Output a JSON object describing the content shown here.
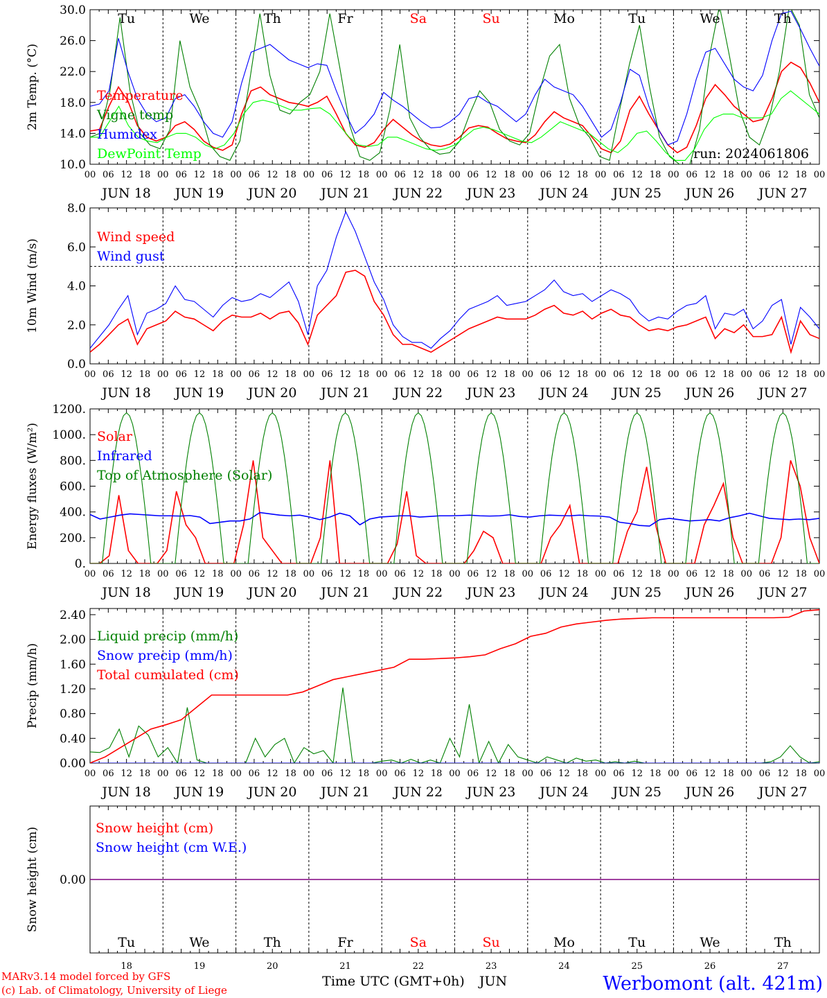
{
  "colors": {
    "red": "#ff0000",
    "green": "#008000",
    "blue": "#0000ff",
    "light_green": "#00ff00",
    "purple": "#800080",
    "axis": "#000000",
    "weekend": "#ff0000"
  },
  "days": [
    "Tu",
    "We",
    "Th",
    "Fr",
    "Sa",
    "Su",
    "Mo",
    "Tu",
    "We",
    "Th"
  ],
  "weekend_days": [
    4,
    5
  ],
  "dates": [
    "JUN 18",
    "JUN 19",
    "JUN 20",
    "JUN 21",
    "JUN 22",
    "JUN 23",
    "JUN 24",
    "JUN 25",
    "JUN 26",
    "JUN 27"
  ],
  "day_numbers": [
    "18",
    "19",
    "20",
    "21",
    "22",
    "23",
    "24",
    "25",
    "26",
    "27"
  ],
  "hour_labels": [
    "00",
    "06",
    "12",
    "18"
  ],
  "hour_label_end": "00",
  "footer": {
    "xlabel": "Time UTC (GMT+0h)",
    "month": "JUN",
    "credit1": "MARv3.14 model forced by GFS",
    "credit2": "(c) Lab. of Climatology, University of Liege",
    "station": "Werbomont (alt. 421m)"
  },
  "chart_data": [
    {
      "id": "temp",
      "type": "line",
      "ylabel": "2m Temp. (°C)",
      "ylim": [
        10,
        30
      ],
      "yticks": [
        "10.0",
        "14.0",
        "18.0",
        "22.0",
        "26.0",
        "30.0"
      ],
      "ytick_values": [
        10,
        14,
        18,
        22,
        26,
        30
      ],
      "annotation": "run: 2024061806",
      "x_hours_start": 0,
      "x_hours_step": 3,
      "series": [
        {
          "name": "Temperature",
          "color": "red",
          "values": [
            14.3,
            14.5,
            17.5,
            20.0,
            18.2,
            15.0,
            13.5,
            13.0,
            13.5,
            15.0,
            15.5,
            14.5,
            13.0,
            12.2,
            11.8,
            12.5,
            16.5,
            19.5,
            20.0,
            19.0,
            18.5,
            18.0,
            17.8,
            17.5,
            18.0,
            18.8,
            16.5,
            14.0,
            12.5,
            12.2,
            12.8,
            14.5,
            15.8,
            14.8,
            13.8,
            13.0,
            12.5,
            12.3,
            12.6,
            13.5,
            14.7,
            15.0,
            14.8,
            14.0,
            13.3,
            13.0,
            12.8,
            13.8,
            15.5,
            16.8,
            16.0,
            15.5,
            15.0,
            13.5,
            12.0,
            11.5,
            13.0,
            17.0,
            18.8,
            16.5,
            14.5,
            12.5,
            11.5,
            12.2,
            15.0,
            18.5,
            20.3,
            19.0,
            17.5,
            16.5,
            15.5,
            15.8,
            18.5,
            22.0,
            23.2,
            22.5,
            20.5,
            18.0
          ]
        },
        {
          "name": "Vigne temp",
          "color": "green",
          "values": [
            13.5,
            14.0,
            19.5,
            29.0,
            19.5,
            14.0,
            12.5,
            12.0,
            14.5,
            26.0,
            20.0,
            17.0,
            12.5,
            11.0,
            10.5,
            13.0,
            21.0,
            29.5,
            21.5,
            17.0,
            16.5,
            18.0,
            19.0,
            22.0,
            29.5,
            22.5,
            15.0,
            11.0,
            10.5,
            11.5,
            17.0,
            25.5,
            16.0,
            13.5,
            12.0,
            11.3,
            11.5,
            13.0,
            16.5,
            19.5,
            18.0,
            14.5,
            13.0,
            12.5,
            14.0,
            19.5,
            24.0,
            25.5,
            18.5,
            15.0,
            13.5,
            11.0,
            10.5,
            17.0,
            23.0,
            28.0,
            20.0,
            13.5,
            11.0,
            10.0,
            9.8,
            14.5,
            24.0,
            30.5,
            24.0,
            17.0,
            13.5,
            12.5,
            16.0,
            22.0,
            30.5,
            28.0,
            19.0,
            16.0
          ]
        },
        {
          "name": "Humidex",
          "color": "blue",
          "values": [
            17.5,
            17.8,
            19.5,
            26.3,
            22.0,
            18.5,
            16.5,
            15.5,
            16.0,
            18.5,
            19.0,
            17.5,
            15.5,
            14.0,
            13.5,
            15.5,
            20.5,
            24.5,
            25.0,
            25.5,
            24.5,
            23.5,
            23.0,
            22.5,
            23.0,
            22.8,
            19.5,
            16.5,
            14.0,
            15.0,
            16.5,
            19.3,
            18.3,
            17.5,
            16.5,
            15.5,
            14.7,
            14.8,
            15.5,
            16.5,
            18.5,
            18.8,
            18.0,
            17.5,
            16.5,
            15.5,
            16.5,
            19.0,
            21.0,
            20.0,
            19.5,
            19.0,
            17.5,
            15.5,
            13.5,
            14.5,
            18.0,
            22.3,
            21.5,
            17.5,
            14.5,
            12.5,
            13.0,
            16.5,
            21.0,
            24.5,
            25.0,
            23.0,
            21.0,
            20.0,
            19.5,
            21.5,
            26.0,
            29.5,
            29.8,
            27.5,
            25.0,
            22.7
          ]
        },
        {
          "name": "DewPoint Temp",
          "color": "light_green",
          "values": [
            13.5,
            13.5,
            15.5,
            17.5,
            15.0,
            13.5,
            13.0,
            12.8,
            13.5,
            14.0,
            14.0,
            13.5,
            12.5,
            12.0,
            12.5,
            14.0,
            16.5,
            18.0,
            18.3,
            18.0,
            17.5,
            17.0,
            17.0,
            17.2,
            17.3,
            16.5,
            15.0,
            13.5,
            12.5,
            12.3,
            12.5,
            13.5,
            13.5,
            13.0,
            12.5,
            12.0,
            11.8,
            12.0,
            12.5,
            13.5,
            14.5,
            14.8,
            14.5,
            14.0,
            13.5,
            13.0,
            12.8,
            13.5,
            14.5,
            15.5,
            15.0,
            14.5,
            14.0,
            13.0,
            12.0,
            11.5,
            12.5,
            14.0,
            14.3,
            13.0,
            11.5,
            10.5,
            10.5,
            12.0,
            14.5,
            16.0,
            16.5,
            16.5,
            16.0,
            16.0,
            16.0,
            16.5,
            18.5,
            19.5,
            18.5,
            17.5,
            16.5
          ]
        }
      ]
    },
    {
      "id": "wind",
      "type": "line",
      "ylabel": "10m Wind (m/s)",
      "ylim": [
        0,
        8
      ],
      "yticks": [
        "0.0",
        "2.0",
        "4.0",
        "6.0",
        "8.0"
      ],
      "ytick_values": [
        0,
        2,
        4,
        6,
        8
      ],
      "reference_line": 5,
      "x_hours_start": 0,
      "x_hours_step": 3,
      "series": [
        {
          "name": "Wind speed",
          "color": "red",
          "values": [
            0.6,
            1.0,
            1.5,
            2.0,
            2.3,
            1.0,
            1.8,
            2.0,
            2.2,
            2.7,
            2.4,
            2.3,
            2.0,
            1.7,
            2.2,
            2.5,
            2.4,
            2.4,
            2.6,
            2.3,
            2.6,
            2.7,
            2.1,
            1.0,
            2.5,
            3.0,
            3.5,
            4.7,
            4.8,
            4.5,
            3.2,
            2.5,
            1.5,
            1.0,
            1.0,
            0.8,
            0.6,
            0.9,
            1.2,
            1.5,
            1.8,
            2.0,
            2.2,
            2.4,
            2.3,
            2.3,
            2.3,
            2.5,
            2.8,
            3.0,
            2.6,
            2.5,
            2.7,
            2.3,
            2.6,
            2.8,
            2.5,
            2.4,
            2.0,
            1.7,
            1.8,
            1.7,
            1.9,
            2.0,
            2.2,
            2.4,
            1.3,
            1.8,
            1.6,
            2.0,
            1.4,
            1.4,
            1.5,
            2.4,
            0.6,
            2.2,
            1.5,
            1.3
          ]
        },
        {
          "name": "Wind gust",
          "color": "blue",
          "values": [
            0.8,
            1.4,
            2.0,
            2.8,
            3.5,
            1.5,
            2.6,
            2.8,
            3.1,
            4.0,
            3.3,
            3.2,
            2.8,
            2.4,
            3.0,
            3.4,
            3.2,
            3.3,
            3.6,
            3.4,
            3.8,
            4.2,
            3.2,
            1.5,
            4.0,
            4.8,
            6.5,
            7.8,
            6.8,
            5.5,
            4.2,
            3.3,
            2.0,
            1.4,
            1.1,
            1.1,
            0.8,
            1.3,
            1.7,
            2.3,
            2.8,
            3.0,
            3.2,
            3.5,
            3.0,
            3.1,
            3.2,
            3.5,
            3.8,
            4.3,
            3.7,
            3.5,
            3.6,
            3.2,
            3.5,
            3.8,
            3.6,
            3.3,
            2.6,
            2.2,
            2.4,
            2.3,
            2.7,
            3.0,
            3.1,
            3.5,
            1.8,
            2.6,
            2.5,
            2.8,
            1.8,
            2.2,
            3.0,
            3.3,
            1.0,
            2.9,
            2.4,
            1.8
          ]
        }
      ]
    },
    {
      "id": "energy",
      "type": "line",
      "ylabel": "Energy fluxes (W/m²)",
      "ylim": [
        0,
        1200
      ],
      "yticks": [
        "0.",
        "200.",
        "400.",
        "600.",
        "800.",
        "1000.",
        "1200."
      ],
      "ytick_values": [
        0,
        200,
        400,
        600,
        800,
        1000,
        1200
      ],
      "x_hours_start": 0,
      "x_hours_step": 3,
      "series": [
        {
          "name": "Solar",
          "color": "red",
          "values": [
            0,
            0,
            60,
            530,
            100,
            0,
            0,
            0,
            100,
            560,
            300,
            200,
            0,
            0,
            0,
            0,
            300,
            800,
            200,
            100,
            0,
            0,
            0,
            0,
            200,
            800,
            0,
            0,
            0,
            0,
            0,
            0,
            150,
            560,
            60,
            0,
            0,
            0,
            0,
            0,
            100,
            250,
            200,
            0,
            0,
            0,
            0,
            0,
            200,
            300,
            450,
            0,
            0,
            0,
            0,
            0,
            250,
            400,
            750,
            280,
            0,
            0,
            0,
            0,
            300,
            450,
            620,
            200,
            0,
            0,
            0,
            0,
            200,
            800,
            600,
            200,
            0
          ]
        },
        {
          "name": "Infrared",
          "color": "blue",
          "values": [
            380,
            345,
            360,
            375,
            385,
            380,
            375,
            370,
            370,
            368,
            372,
            360,
            310,
            320,
            330,
            330,
            345,
            395,
            385,
            375,
            370,
            375,
            360,
            340,
            360,
            390,
            370,
            300,
            345,
            360,
            365,
            370,
            370,
            360,
            365,
            370,
            370,
            372,
            375,
            370,
            368,
            370,
            378,
            365,
            360,
            370,
            375,
            372,
            370,
            375,
            370,
            368,
            360,
            320,
            310,
            295,
            290,
            340,
            350,
            340,
            330,
            335,
            340,
            330,
            355,
            370,
            390,
            370,
            350,
            345,
            340,
            345,
            340,
            350
          ]
        },
        {
          "name": "Top of Atmosphere (Solar)",
          "color": "green",
          "values": "diurnal",
          "peak": 1170
        }
      ]
    },
    {
      "id": "precip",
      "type": "line",
      "ylabel": "Precip (mm/h)",
      "ylim": [
        0,
        2.5
      ],
      "yticks": [
        "0.00",
        "0.40",
        "0.80",
        "1.20",
        "1.60",
        "2.00",
        "2.40"
      ],
      "ytick_values": [
        0,
        0.4,
        0.8,
        1.2,
        1.6,
        2.0,
        2.4
      ],
      "x_hours_start": 0,
      "x_hours_step": 3,
      "series": [
        {
          "name": "Liquid precip (mm/h)",
          "color": "green",
          "values": [
            0.18,
            0.17,
            0.25,
            0.55,
            0.1,
            0.6,
            0.45,
            0.1,
            0.25,
            0.0,
            0.9,
            0.05,
            0.0,
            0.0,
            0.0,
            0.0,
            0.0,
            0.4,
            0.1,
            0.3,
            0.4,
            0.0,
            0.25,
            0.15,
            0.2,
            0.0,
            1.22,
            0.0,
            0.0,
            0.0,
            0.03,
            0.05,
            0.0,
            0.06,
            0.0,
            0.05,
            0.0,
            0.4,
            0.1,
            0.95,
            0.0,
            0.35,
            0.0,
            0.3,
            0.1,
            0.05,
            0.0,
            0.1,
            0.05,
            0.0,
            0.08,
            0.03,
            0.05,
            0.0,
            0.02,
            0.0,
            0.03,
            0.0,
            0.0,
            0.0,
            0.0,
            0.0,
            0.0,
            0.0,
            0.0,
            0.0,
            0.0,
            0.0,
            0.0,
            0.0,
            0.02,
            0.1,
            0.28,
            0.1,
            0.0,
            0.02
          ]
        },
        {
          "name": "Snow precip (mm/h)",
          "color": "blue",
          "values": [
            0,
            0
          ]
        },
        {
          "name": "Total cumulated (cm)",
          "color": "red",
          "values": [
            0.0,
            0.1,
            0.25,
            0.4,
            0.55,
            0.62,
            0.7,
            0.9,
            1.1,
            1.1,
            1.1,
            1.1,
            1.1,
            1.1,
            1.15,
            1.25,
            1.35,
            1.4,
            1.45,
            1.5,
            1.55,
            1.68,
            1.68,
            1.69,
            1.7,
            1.72,
            1.75,
            1.85,
            1.93,
            2.05,
            2.1,
            2.2,
            2.25,
            2.28,
            2.31,
            2.33,
            2.34,
            2.35,
            2.35,
            2.35,
            2.35,
            2.35,
            2.35,
            2.35,
            2.35,
            2.35,
            2.36,
            2.46,
            2.48
          ]
        }
      ]
    },
    {
      "id": "snow",
      "type": "line",
      "ylabel": "Snow height (cm)",
      "ylim": [
        -1,
        1
      ],
      "yticks": [
        "0.00"
      ],
      "ytick_values": [
        0
      ],
      "x_hours_start": 0,
      "x_hours_step": 240,
      "series": [
        {
          "name": "Snow height (cm)",
          "color": "red",
          "values": [
            0,
            0
          ]
        },
        {
          "name": "Snow height (cm W.E.)",
          "color": "blue",
          "values": [
            0,
            0
          ]
        }
      ]
    }
  ]
}
